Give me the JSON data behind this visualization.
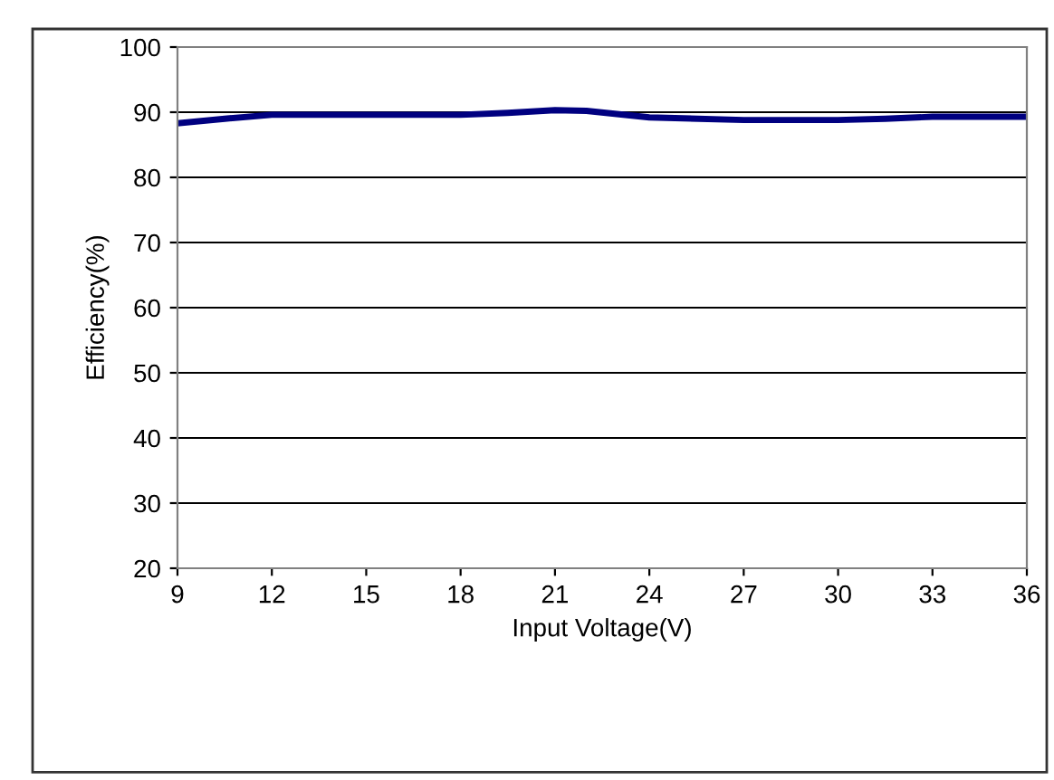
{
  "chart_data": {
    "type": "line",
    "xlabel": "Input Voltage(V)",
    "ylabel": "Efficiency(%)",
    "x": [
      9,
      10.5,
      12,
      15,
      18,
      19.5,
      21,
      22,
      24,
      27,
      30,
      31.5,
      33,
      36
    ],
    "series": [
      {
        "color": "#000080",
        "values": [
          88.3,
          89.0,
          89.6,
          89.6,
          89.6,
          89.9,
          90.3,
          90.2,
          89.2,
          88.8,
          88.8,
          89.0,
          89.3,
          89.3
        ]
      }
    ],
    "xlim": [
      9,
      36
    ],
    "xticks": [
      9,
      12,
      15,
      18,
      21,
      24,
      27,
      30,
      33,
      36
    ],
    "ylim": [
      20,
      100
    ],
    "yticks": [
      20,
      30,
      40,
      50,
      60,
      70,
      80,
      90,
      100
    ],
    "grid": "y",
    "marker": "none",
    "line_style": "solid"
  }
}
